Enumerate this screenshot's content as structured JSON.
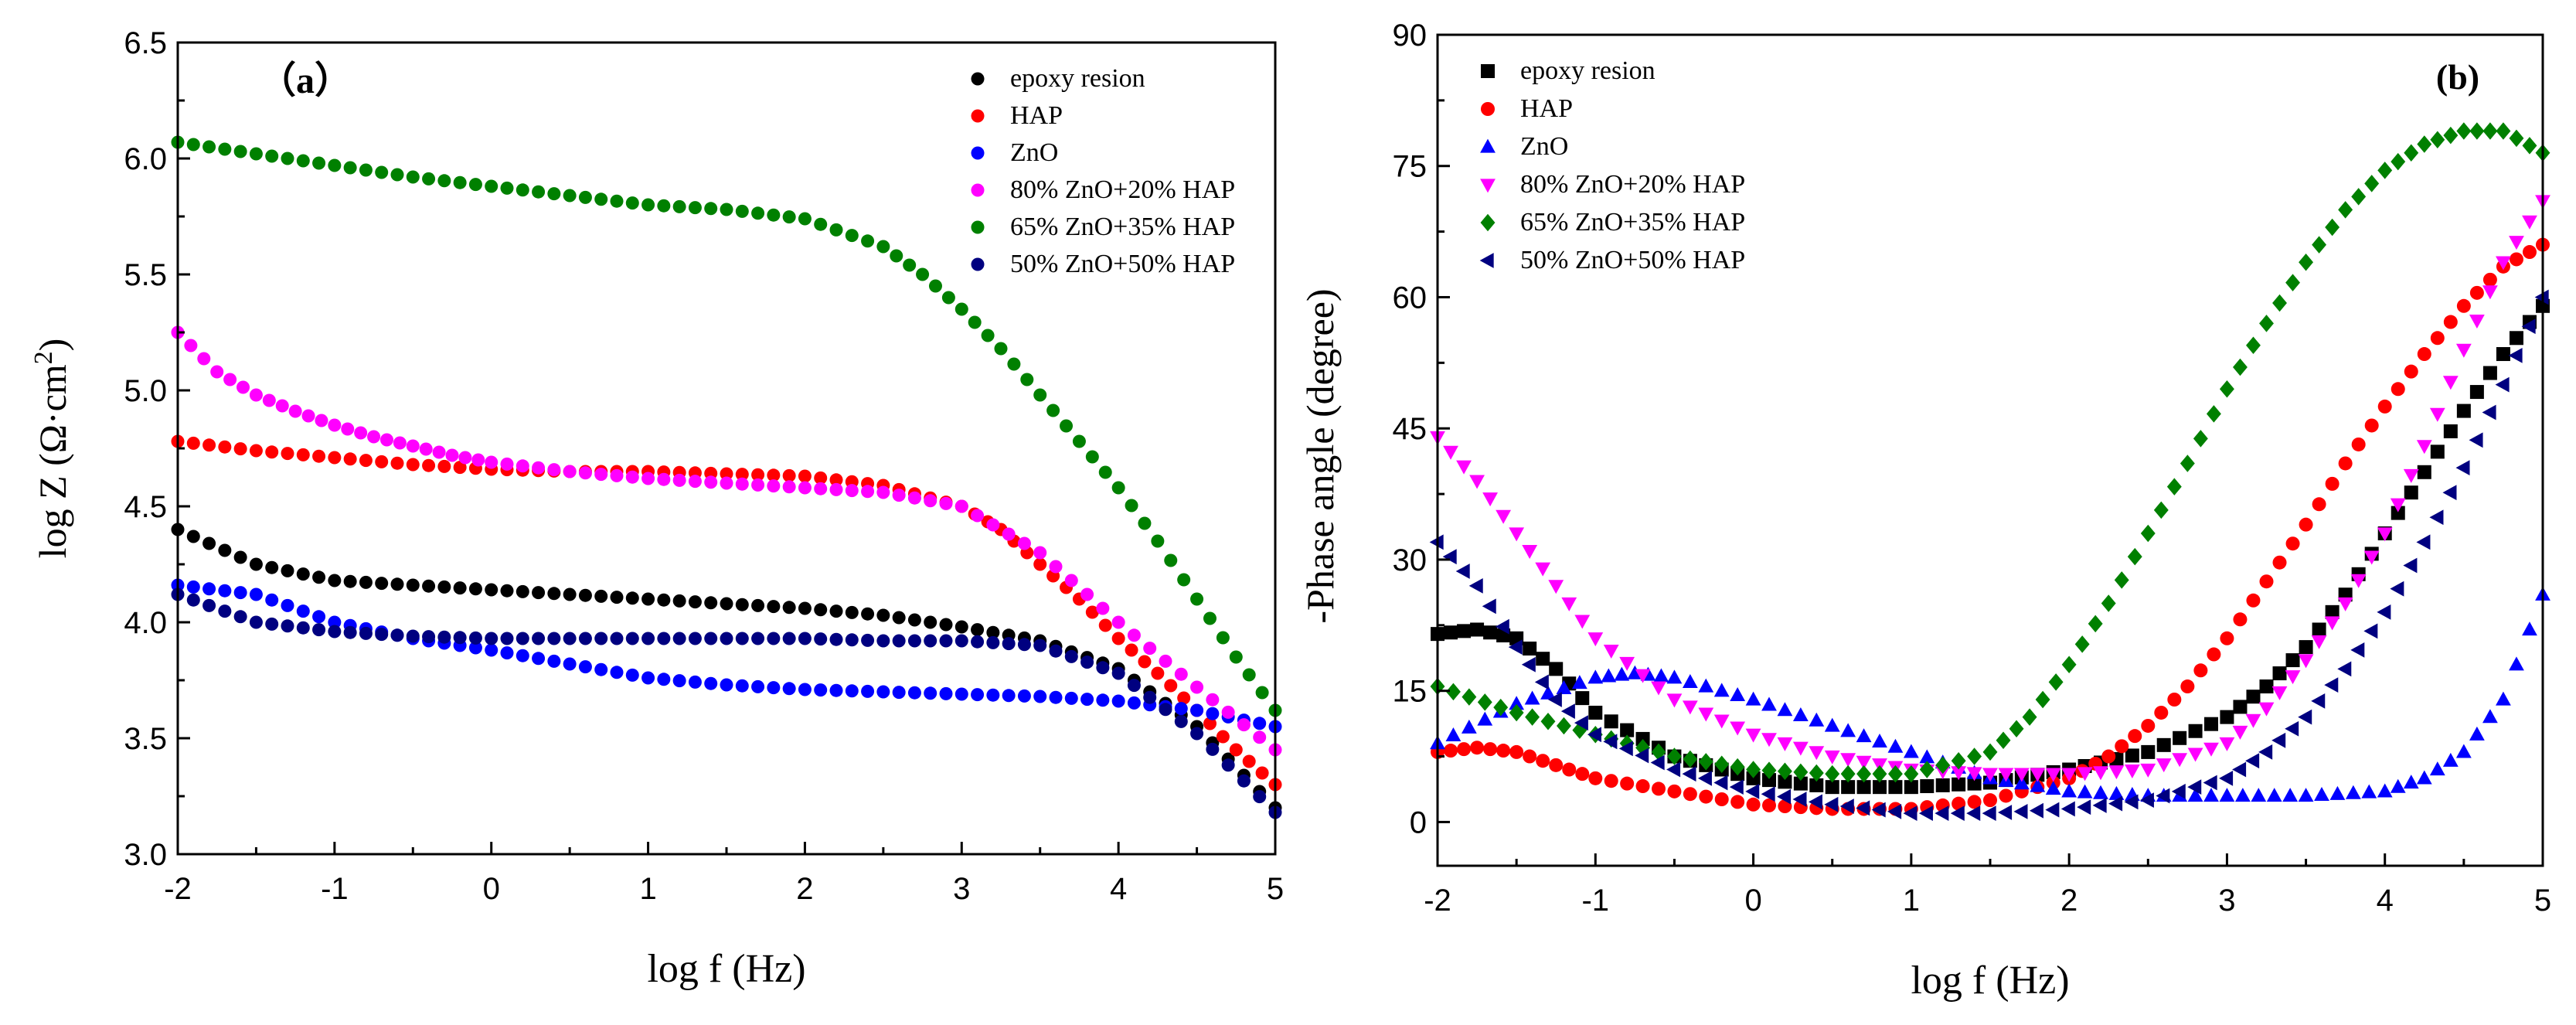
{
  "colors": {
    "epoxy": "#000000",
    "hap": "#ff0000",
    "zno": "#0000ff",
    "z80": "#ff00ff",
    "z65": "#008000",
    "z50": "#000080"
  },
  "chart_data": [
    {
      "type": "scatter",
      "panel_label": "（a）",
      "xlabel": "log f (Hz)",
      "ylabel": "log Z (Ω·cm²)",
      "xlim": [
        -2,
        5
      ],
      "ylim": [
        3.0,
        6.5
      ],
      "xticks": [
        "-2",
        "-1",
        "0",
        "1",
        "2",
        "3",
        "4",
        "5"
      ],
      "yticks": [
        "3.0",
        "3.5",
        "4.0",
        "4.5",
        "5.0",
        "5.5",
        "6.0",
        "6.5"
      ],
      "legend_position": "top-right",
      "grid": false,
      "series": [
        {
          "name": "epoxy resion",
          "color_key": "epoxy",
          "marker": "circle",
          "x": [
            -2,
            -1.5,
            -1,
            -0.5,
            0,
            0.5,
            1,
            1.5,
            2,
            2.5,
            3,
            3.5,
            4,
            4.5,
            5
          ],
          "y": [
            4.4,
            4.25,
            4.18,
            4.16,
            4.14,
            4.12,
            4.1,
            4.08,
            4.06,
            4.03,
            3.98,
            3.92,
            3.8,
            3.55,
            3.2
          ]
        },
        {
          "name": "HAP",
          "color_key": "hap",
          "marker": "circle",
          "x": [
            -2,
            -1.5,
            -1,
            -0.5,
            0,
            0.5,
            1,
            1.5,
            2,
            2.5,
            3,
            3.25,
            3.5,
            3.75,
            4,
            4.25,
            4.5,
            4.75,
            5
          ],
          "y": [
            4.78,
            4.74,
            4.71,
            4.68,
            4.66,
            4.65,
            4.65,
            4.64,
            4.63,
            4.59,
            4.5,
            4.4,
            4.25,
            4.1,
            3.93,
            3.78,
            3.62,
            3.45,
            3.3
          ]
        },
        {
          "name": "ZnO",
          "color_key": "zno",
          "marker": "circle",
          "x": [
            -2,
            -1.5,
            -1,
            -0.5,
            0,
            0.5,
            1,
            1.5,
            2,
            2.5,
            3,
            3.5,
            4,
            4.5,
            5
          ],
          "y": [
            4.16,
            4.12,
            4.0,
            3.93,
            3.88,
            3.82,
            3.76,
            3.73,
            3.71,
            3.7,
            3.69,
            3.68,
            3.66,
            3.62,
            3.55
          ]
        },
        {
          "name": "80% ZnO+20% HAP",
          "color_key": "z80",
          "marker": "circle",
          "x": [
            -2,
            -1.75,
            -1.5,
            -1.25,
            -1,
            -0.75,
            -0.5,
            -0.25,
            0,
            0.5,
            1,
            1.5,
            2,
            2.5,
            3,
            3.5,
            4,
            4.5,
            5
          ],
          "y": [
            5.25,
            5.08,
            4.98,
            4.91,
            4.85,
            4.8,
            4.76,
            4.72,
            4.69,
            4.65,
            4.62,
            4.6,
            4.58,
            4.56,
            4.5,
            4.3,
            4.0,
            3.72,
            3.45
          ]
        },
        {
          "name": "65% ZnO+35% HAP",
          "color_key": "z65",
          "marker": "circle",
          "x": [
            -2,
            -1.5,
            -1,
            -0.5,
            0,
            0.5,
            1,
            1.5,
            2,
            2.5,
            2.75,
            3,
            3.25,
            3.5,
            3.75,
            4,
            4.25,
            4.5,
            4.75,
            5
          ],
          "y": [
            6.07,
            6.02,
            5.97,
            5.92,
            5.88,
            5.84,
            5.8,
            5.78,
            5.74,
            5.62,
            5.5,
            5.35,
            5.18,
            4.98,
            4.78,
            4.58,
            4.35,
            4.1,
            3.85,
            3.62
          ]
        },
        {
          "name": "50% ZnO+50% HAP",
          "color_key": "z50",
          "marker": "circle",
          "x": [
            -2,
            -1.5,
            -1,
            -0.5,
            0,
            0.5,
            1,
            1.5,
            2,
            2.5,
            3,
            3.5,
            4,
            4.5,
            5
          ],
          "y": [
            4.12,
            4.0,
            3.96,
            3.94,
            3.93,
            3.93,
            3.93,
            3.93,
            3.93,
            3.92,
            3.92,
            3.9,
            3.78,
            3.52,
            3.18
          ]
        }
      ]
    },
    {
      "type": "scatter",
      "panel_label": "(b)",
      "xlabel": "log f (Hz)",
      "ylabel": "-Phase angle (degree)",
      "xlim": [
        -2,
        5
      ],
      "ylim": [
        -5,
        90
      ],
      "xticks": [
        "-2",
        "-1",
        "0",
        "1",
        "2",
        "3",
        "4",
        "5"
      ],
      "yticks": [
        "0",
        "15",
        "30",
        "45",
        "60",
        "75",
        "90"
      ],
      "legend_position": "top-left",
      "grid": false,
      "series": [
        {
          "name": "epoxy resion",
          "color_key": "epoxy",
          "marker": "square",
          "x": [
            -2,
            -1.75,
            -1.5,
            -1.25,
            -1,
            -0.5,
            0,
            0.5,
            1,
            1.5,
            2,
            2.5,
            3,
            3.25,
            3.5,
            3.75,
            4,
            4.25,
            4.5,
            4.75,
            5
          ],
          "y": [
            21.5,
            22,
            21,
            17.5,
            12.5,
            7.5,
            5,
            4,
            4,
            4.5,
            6,
            8,
            12,
            15.5,
            20,
            26,
            33,
            40,
            47,
            53.5,
            59
          ]
        },
        {
          "name": "HAP",
          "color_key": "hap",
          "marker": "circle",
          "x": [
            -2,
            -1.75,
            -1.5,
            -1.25,
            -1,
            -0.5,
            0,
            0.5,
            1,
            1.5,
            2,
            2.25,
            2.5,
            2.75,
            3,
            3.25,
            3.5,
            3.75,
            4,
            4.25,
            4.5,
            4.75,
            5
          ],
          "y": [
            8,
            8.5,
            8,
            6.5,
            5,
            3.5,
            2,
            1.5,
            1.5,
            2.5,
            5,
            7.5,
            11,
            15.5,
            21,
            27.5,
            34,
            41,
            47.5,
            53.5,
            59,
            63.5,
            66
          ]
        },
        {
          "name": "ZnO",
          "color_key": "zno",
          "marker": "triangle-up",
          "x": [
            -2,
            -1.5,
            -1,
            -0.75,
            -0.5,
            0,
            0.5,
            1,
            1.5,
            2,
            2.5,
            3,
            3.5,
            4,
            4.25,
            4.5,
            4.75,
            5
          ],
          "y": [
            9,
            13.5,
            16.5,
            17,
            16.5,
            14,
            11,
            8,
            5,
            3.5,
            3,
            3,
            3,
            3.5,
            5,
            8,
            14,
            26
          ]
        },
        {
          "name": "80% ZnO+20% HAP",
          "color_key": "z80",
          "marker": "triangle-down",
          "x": [
            -2,
            -1.75,
            -1.5,
            -1.25,
            -1,
            -0.5,
            0,
            0.5,
            1,
            1.5,
            2,
            2.5,
            3,
            3.25,
            3.5,
            3.75,
            4,
            4.25,
            4.5,
            4.75,
            5
          ],
          "y": [
            44,
            39,
            33,
            27,
            21,
            14,
            10,
            7.5,
            6,
            5.5,
            5.5,
            6,
            9,
            13,
            18.5,
            25,
            33,
            43,
            54,
            64,
            71
          ]
        },
        {
          "name": "65% ZnO+35% HAP",
          "color_key": "z65",
          "marker": "diamond",
          "x": [
            -2,
            -1.5,
            -1,
            -0.5,
            0,
            0.5,
            1,
            1.5,
            1.75,
            2,
            2.25,
            2.5,
            2.75,
            3,
            3.25,
            3.5,
            3.75,
            4,
            4.25,
            4.5,
            4.75,
            5
          ],
          "y": [
            15.5,
            12.5,
            10,
            7.5,
            6,
            5.5,
            5.5,
            8,
            12,
            18,
            25,
            33,
            41,
            49.5,
            57,
            64,
            70,
            74.5,
            77.5,
            79,
            79,
            76.5
          ]
        },
        {
          "name": "50% ZnO+50% HAP",
          "color_key": "z50",
          "marker": "triangle-left",
          "x": [
            -2,
            -1.75,
            -1.5,
            -1.25,
            -1,
            -0.5,
            0,
            0.5,
            1,
            1.5,
            2,
            2.5,
            3,
            3.25,
            3.5,
            3.75,
            4,
            4.25,
            4.5,
            4.75,
            5
          ],
          "y": [
            32,
            27,
            20,
            14,
            10,
            6,
            3.5,
            2,
            1,
            1,
            1.5,
            2.5,
            5,
            8,
            12,
            17.5,
            24,
            32,
            40.5,
            50,
            60
          ]
        }
      ]
    }
  ]
}
